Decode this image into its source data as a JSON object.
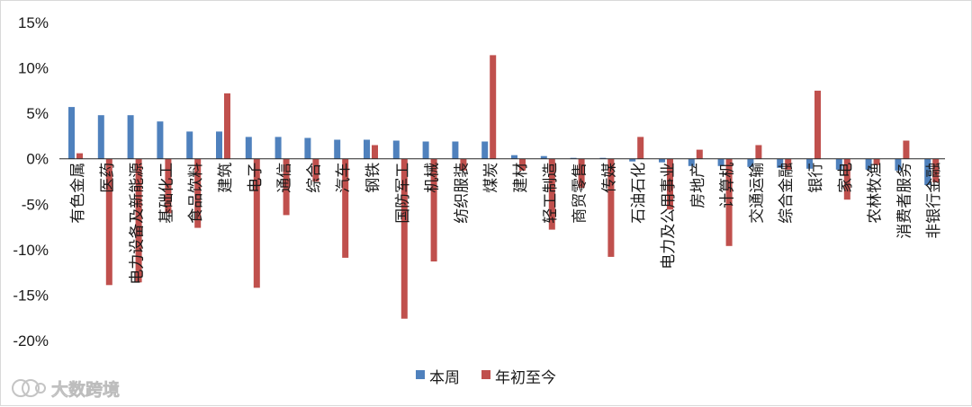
{
  "chart_data": {
    "type": "bar",
    "title": "",
    "xlabel": "",
    "ylabel": "",
    "ylim": [
      -20,
      15
    ],
    "yticks": [
      15,
      10,
      5,
      0,
      -5,
      -10,
      -15,
      -20
    ],
    "ytick_labels": [
      "15%",
      "10%",
      "5%",
      "0%",
      "-5%",
      "-10%",
      "-15%",
      "-20%"
    ],
    "grid": false,
    "legend_position": "bottom",
    "categories": [
      "有色金属",
      "医药",
      "电力设备及新能源",
      "基础化工",
      "食品饮料",
      "建筑",
      "电子",
      "通信",
      "综合",
      "汽车",
      "钢铁",
      "国防军工",
      "机械",
      "纺织服装",
      "煤炭",
      "建材",
      "轻工制造",
      "商贸零售",
      "传媒",
      "石油石化",
      "电力及公用事业",
      "房地产",
      "计算机",
      "交通运输",
      "综合金融",
      "银行",
      "家电",
      "农林牧渔",
      "消费者服务",
      "非银行金融"
    ],
    "series": [
      {
        "name": "本周",
        "color": "#4f81bd",
        "values": [
          5.7,
          4.8,
          4.8,
          4.1,
          3.0,
          3.0,
          2.4,
          2.4,
          2.3,
          2.1,
          2.1,
          2.0,
          1.9,
          1.9,
          1.9,
          0.4,
          0.3,
          0.1,
          0.1,
          -0.3,
          -0.4,
          -0.8,
          -0.8,
          -0.9,
          -1.0,
          -1.1,
          -1.2,
          -1.2,
          -1.3,
          -2.9
        ]
      },
      {
        "name": "年初至今",
        "color": "#c0504d",
        "values": [
          0.6,
          -13.9,
          -13.6,
          -6.0,
          -7.6,
          7.2,
          -14.2,
          -6.2,
          -2.5,
          -10.9,
          1.5,
          -17.6,
          -11.3,
          -1.3,
          11.4,
          -1.3,
          -7.8,
          -3.2,
          -10.8,
          2.4,
          -5.6,
          1.0,
          -9.6,
          1.5,
          -1.2,
          7.5,
          -4.5,
          -0.7,
          2.0,
          -2.6
        ]
      }
    ]
  },
  "watermark": {
    "text": "大数跨境"
  }
}
